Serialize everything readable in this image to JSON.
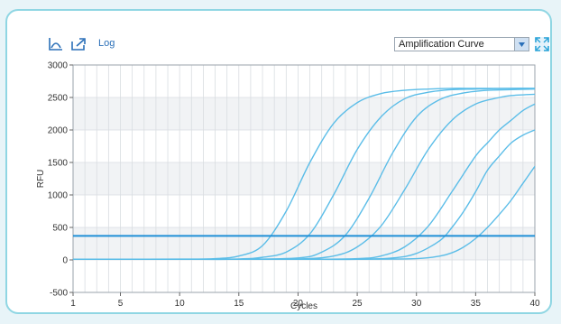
{
  "toolbar": {
    "log_label": "Log",
    "view_selected": "Amplification Curve",
    "accent_color": "#2a6fb8"
  },
  "chart_data": {
    "type": "line",
    "xlabel": "Cycles",
    "ylabel": "RFU",
    "xlim": [
      1,
      40
    ],
    "ylim": [
      -500,
      3000
    ],
    "x_ticks": [
      1,
      5,
      10,
      15,
      20,
      25,
      30,
      35,
      40
    ],
    "y_ticks": [
      -500,
      0,
      500,
      1000,
      1500,
      2000,
      2500,
      3000
    ],
    "threshold": 370,
    "grid": true,
    "series_color": "#5bbde8",
    "series": [
      {
        "x": [
          1,
          5,
          10,
          13,
          15,
          17,
          19,
          21,
          23,
          25,
          27,
          29,
          31,
          33,
          35,
          38,
          40
        ],
        "y": [
          10,
          10,
          12,
          20,
          60,
          220,
          750,
          1500,
          2100,
          2420,
          2560,
          2610,
          2630,
          2640,
          2640,
          2640,
          2640
        ]
      },
      {
        "x": [
          1,
          5,
          10,
          15,
          17,
          19,
          21,
          23,
          25,
          27,
          29,
          31,
          33,
          35,
          38,
          40
        ],
        "y": [
          10,
          10,
          10,
          15,
          40,
          120,
          400,
          1000,
          1700,
          2200,
          2480,
          2580,
          2620,
          2630,
          2640,
          2640
        ]
      },
      {
        "x": [
          1,
          5,
          10,
          15,
          20,
          22,
          24,
          26,
          28,
          30,
          32,
          34,
          36,
          38,
          40
        ],
        "y": [
          10,
          10,
          10,
          10,
          30,
          120,
          380,
          950,
          1650,
          2200,
          2470,
          2570,
          2610,
          2620,
          2630
        ]
      },
      {
        "x": [
          1,
          5,
          10,
          15,
          20,
          23,
          25,
          27,
          29,
          31,
          33,
          35,
          37,
          38,
          40
        ],
        "y": [
          10,
          10,
          10,
          10,
          15,
          60,
          200,
          520,
          1080,
          1700,
          2150,
          2400,
          2500,
          2530,
          2550
        ]
      },
      {
        "x": [
          1,
          5,
          10,
          15,
          20,
          25,
          27,
          29,
          31,
          33,
          35,
          36,
          37,
          38,
          39,
          40
        ],
        "y": [
          10,
          10,
          10,
          10,
          10,
          20,
          60,
          200,
          520,
          1050,
          1600,
          1800,
          2000,
          2150,
          2300,
          2400
        ]
      },
      {
        "x": [
          1,
          5,
          10,
          15,
          20,
          25,
          28,
          30,
          32,
          33,
          34,
          35,
          36,
          37,
          38,
          39,
          40
        ],
        "y": [
          10,
          10,
          10,
          10,
          10,
          10,
          30,
          100,
          300,
          500,
          750,
          1050,
          1380,
          1600,
          1800,
          1920,
          2000
        ]
      },
      {
        "x": [
          1,
          5,
          10,
          15,
          20,
          25,
          30,
          32,
          33,
          34,
          35,
          36,
          37,
          38,
          39,
          40
        ],
        "y": [
          10,
          10,
          10,
          10,
          10,
          10,
          20,
          60,
          110,
          200,
          330,
          500,
          700,
          920,
          1180,
          1440
        ]
      }
    ]
  }
}
